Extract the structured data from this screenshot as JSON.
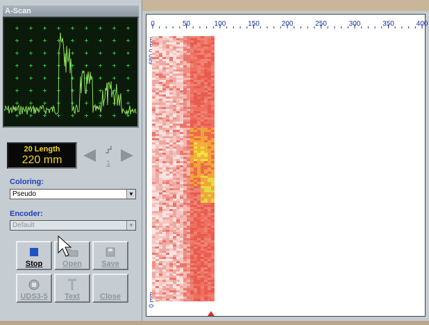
{
  "ascan": {
    "title": "A-Scan"
  },
  "length": {
    "label": "20  Length",
    "value": "220 mm"
  },
  "nav": {
    "prev_icon": "arrow-left-icon",
    "step_label": "1",
    "next_icon": "arrow-right-icon"
  },
  "coloring": {
    "label": "Coloring:",
    "value": "Pseudo"
  },
  "encoder": {
    "label": "Encoder:",
    "value": "Default"
  },
  "buttons": {
    "stop": "Stop",
    "open": "Open",
    "save": "Save",
    "uds": "UDS3-5",
    "text": "Text",
    "close": "Close"
  },
  "plot": {
    "x_ticks": [
      "0",
      "50",
      "100",
      "150",
      "200",
      "250",
      "300",
      "350",
      "400"
    ],
    "y_top_label": "680.0 mm",
    "y_bottom_label": "0 mm"
  },
  "colors": {
    "accent": "#1f3fb5",
    "trace": "#7ad04a",
    "lcd": "#f3d321"
  }
}
